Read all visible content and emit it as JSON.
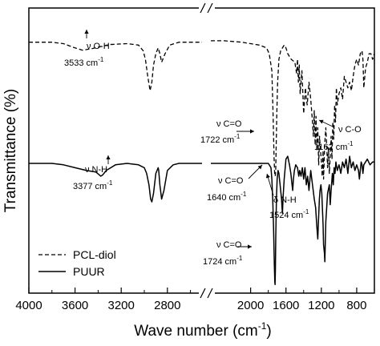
{
  "chart_data": {
    "type": "line",
    "xlabel": "Wave number (cm",
    "xlabel_sup": "-1",
    "xlabel_tail": ")",
    "ylabel": "Transmittance (%)",
    "x_axis_reversed": true,
    "x_axis_broken": true,
    "xlim": [
      4000,
      2500,
      2450,
      600
    ],
    "xticks": [
      4000,
      3600,
      3200,
      2800,
      2000,
      1600,
      1200,
      800
    ],
    "ylim": [
      0,
      1
    ],
    "y_ticks_shown": false,
    "legend_position": "bottom-left",
    "series": [
      {
        "name": "PCL-diol",
        "line_style": "dashed",
        "x": [
          4000,
          3900,
          3800,
          3700,
          3600,
          3533,
          3450,
          3300,
          3150,
          3050,
          3010,
          2990,
          2970,
          2950,
          2935,
          2920,
          2900,
          2880,
          2865,
          2850,
          2820,
          2780,
          2700,
          2600,
          2500,
          2450,
          2300,
          2100,
          2000,
          1900,
          1820,
          1790,
          1760,
          1745,
          1735,
          1728,
          1722,
          1716,
          1712,
          1705,
          1695,
          1680,
          1660,
          1620,
          1600,
          1580,
          1540,
          1500,
          1480,
          1470,
          1460,
          1450,
          1440,
          1420,
          1400,
          1380,
          1370,
          1360,
          1340,
          1320,
          1300,
          1290,
          1280,
          1270,
          1260,
          1250,
          1240,
          1230,
          1220,
          1210,
          1200,
          1190,
          1180,
          1175,
          1162,
          1150,
          1140,
          1130,
          1120,
          1110,
          1100,
          1090,
          1080,
          1070,
          1060,
          1050,
          1040,
          1030,
          1020,
          1000,
          980,
          960,
          940,
          920,
          900,
          880,
          860,
          840,
          820,
          800,
          780,
          760,
          740,
          730,
          720,
          700,
          680,
          660,
          640,
          620,
          600
        ],
        "y": [
          0.88,
          0.88,
          0.88,
          0.875,
          0.86,
          0.852,
          0.858,
          0.872,
          0.875,
          0.87,
          0.85,
          0.82,
          0.76,
          0.71,
          0.74,
          0.8,
          0.84,
          0.86,
          0.84,
          0.81,
          0.84,
          0.87,
          0.88,
          0.88,
          0.88,
          0.885,
          0.885,
          0.88,
          0.875,
          0.87,
          0.86,
          0.84,
          0.78,
          0.62,
          0.48,
          0.42,
          0.41,
          0.43,
          0.5,
          0.62,
          0.74,
          0.82,
          0.85,
          0.87,
          0.86,
          0.84,
          0.82,
          0.81,
          0.77,
          0.82,
          0.74,
          0.8,
          0.7,
          0.78,
          0.63,
          0.72,
          0.68,
          0.66,
          0.74,
          0.68,
          0.6,
          0.55,
          0.64,
          0.52,
          0.62,
          0.5,
          0.58,
          0.45,
          0.55,
          0.5,
          0.47,
          0.41,
          0.5,
          0.4,
          0.52,
          0.58,
          0.52,
          0.44,
          0.51,
          0.42,
          0.48,
          0.55,
          0.47,
          0.6,
          0.54,
          0.66,
          0.6,
          0.72,
          0.66,
          0.7,
          0.72,
          0.68,
          0.76,
          0.74,
          0.72,
          0.74,
          0.71,
          0.76,
          0.8,
          0.82,
          0.8,
          0.84,
          0.85,
          0.82,
          0.72,
          0.79,
          0.81,
          0.84,
          0.84,
          0.82,
          0.84
        ]
      },
      {
        "name": "PUUR",
        "line_style": "solid",
        "x": [
          4000,
          3900,
          3800,
          3700,
          3600,
          3500,
          3420,
          3390,
          3377,
          3360,
          3330,
          3250,
          3150,
          3050,
          3000,
          2980,
          2960,
          2945,
          2935,
          2920,
          2900,
          2880,
          2875,
          2865,
          2850,
          2830,
          2800,
          2750,
          2700,
          2600,
          2500,
          2450,
          2300,
          2100,
          2000,
          1900,
          1800,
          1770,
          1760,
          1750,
          1740,
          1732,
          1726,
          1724,
          1720,
          1715,
          1708,
          1700,
          1690,
          1680,
          1670,
          1660,
          1650,
          1645,
          1640,
          1632,
          1620,
          1600,
          1580,
          1560,
          1545,
          1535,
          1528,
          1524,
          1516,
          1505,
          1490,
          1470,
          1455,
          1445,
          1430,
          1415,
          1400,
          1385,
          1370,
          1355,
          1340,
          1320,
          1300,
          1280,
          1265,
          1250,
          1240,
          1230,
          1222,
          1215,
          1205,
          1195,
          1180,
          1175,
          1165,
          1160,
          1150,
          1130,
          1110,
          1100,
          1090,
          1075,
          1065,
          1055,
          1045,
          1035,
          1020,
          1000,
          980,
          960,
          940,
          920,
          900,
          880,
          860,
          840,
          820,
          800,
          780,
          770,
          760,
          750,
          740,
          730,
          720,
          700,
          680,
          650,
          620,
          600
        ],
        "y": [
          0.455,
          0.455,
          0.455,
          0.45,
          0.44,
          0.43,
          0.425,
          0.415,
          0.41,
          0.415,
          0.43,
          0.45,
          0.455,
          0.45,
          0.44,
          0.42,
          0.38,
          0.33,
          0.32,
          0.35,
          0.42,
          0.44,
          0.43,
          0.38,
          0.33,
          0.36,
          0.43,
          0.45,
          0.455,
          0.455,
          0.455,
          0.455,
          0.455,
          0.455,
          0.455,
          0.455,
          0.455,
          0.44,
          0.4,
          0.33,
          0.22,
          0.1,
          0.04,
          0.03,
          0.08,
          0.2,
          0.33,
          0.4,
          0.43,
          0.42,
          0.39,
          0.36,
          0.33,
          0.3,
          0.28,
          0.34,
          0.4,
          0.47,
          0.48,
          0.45,
          0.42,
          0.39,
          0.37,
          0.36,
          0.4,
          0.43,
          0.45,
          0.44,
          0.41,
          0.43,
          0.41,
          0.44,
          0.4,
          0.44,
          0.38,
          0.41,
          0.36,
          0.43,
          0.38,
          0.33,
          0.3,
          0.23,
          0.19,
          0.27,
          0.33,
          0.36,
          0.38,
          0.35,
          0.24,
          0.17,
          0.14,
          0.11,
          0.25,
          0.35,
          0.38,
          0.31,
          0.36,
          0.42,
          0.38,
          0.44,
          0.42,
          0.46,
          0.43,
          0.45,
          0.42,
          0.46,
          0.44,
          0.47,
          0.42,
          0.48,
          0.44,
          0.46,
          0.43,
          0.45,
          0.43,
          0.4,
          0.43,
          0.46,
          0.45,
          0.42,
          0.45,
          0.46,
          0.47,
          0.45,
          0.46,
          0.46
        ]
      }
    ],
    "annotations": [
      {
        "label": "ν O-H",
        "value": "3533 cm",
        "sup": "-1"
      },
      {
        "label": "ν N-H",
        "value": "3377 cm",
        "sup": "-1"
      },
      {
        "label": "ν C=O",
        "value": "1722 cm",
        "sup": "-1"
      },
      {
        "label": "ν C-O",
        "value": "1162 cm",
        "sup": "-1"
      },
      {
        "label": "ν C=O",
        "value": "1640 cm",
        "sup": "-1"
      },
      {
        "label": "δ N-H",
        "value": "1524 cm",
        "sup": "-1"
      },
      {
        "label": "ν C=O",
        "value": "1724 cm",
        "sup": "-1"
      }
    ]
  }
}
